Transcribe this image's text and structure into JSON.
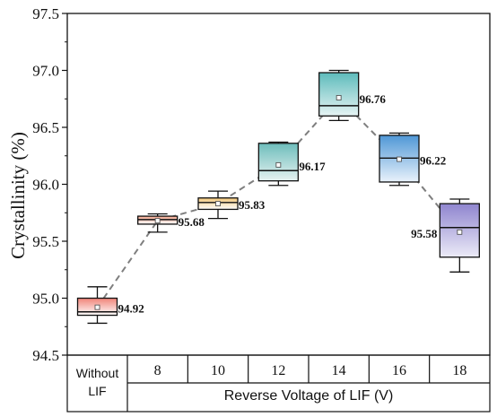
{
  "chart_data": {
    "type": "box",
    "ylabel": "Crystallinity (%)",
    "xlabel": "Reverse Voltage of LIF (V)",
    "ylim": [
      94.5,
      97.5
    ],
    "yticks": [
      "94.5",
      "95.0",
      "95.5",
      "96.0",
      "96.5",
      "97.0",
      "97.5"
    ],
    "categories": [
      {
        "line1": "Without",
        "line2": "LIF"
      },
      {
        "line1": "8"
      },
      {
        "line1": "10"
      },
      {
        "line1": "12"
      },
      {
        "line1": "14"
      },
      {
        "line1": "16"
      },
      {
        "line1": "18"
      }
    ],
    "boxes": [
      {
        "min": 94.78,
        "q1": 94.85,
        "median": 94.88,
        "q3": 95.0,
        "max": 95.1,
        "mean": 94.92,
        "label": "94.92",
        "color_top": "#ffffff",
        "color_bottom": "#f08378"
      },
      {
        "min": 95.58,
        "q1": 95.65,
        "median": 95.69,
        "q3": 95.72,
        "max": 95.74,
        "mean": 95.68,
        "label": "95.68",
        "color_top": "#ffffff",
        "color_bottom": "#f2a38a"
      },
      {
        "min": 95.7,
        "q1": 95.78,
        "median": 95.84,
        "q3": 95.88,
        "max": 95.94,
        "mean": 95.83,
        "label": "95.83",
        "color_top": "#ffffff",
        "color_bottom": "#f2c779"
      },
      {
        "min": 95.99,
        "q1": 96.03,
        "median": 96.12,
        "q3": 96.36,
        "max": 96.37,
        "mean": 96.17,
        "label": "96.17",
        "color_top": "#e6f2f1",
        "color_bottom": "#6dbdbb"
      },
      {
        "min": 96.56,
        "q1": 96.6,
        "median": 96.69,
        "q3": 96.98,
        "max": 97.0,
        "mean": 96.76,
        "label": "96.76",
        "color_top": "#e7f4f4",
        "color_bottom": "#5dbbbb"
      },
      {
        "min": 95.99,
        "q1": 96.02,
        "median": 96.23,
        "q3": 96.43,
        "max": 96.45,
        "mean": 96.22,
        "label": "96.22",
        "color_top": "#e9f2fb",
        "color_bottom": "#4f97d6"
      },
      {
        "min": 95.23,
        "q1": 95.36,
        "median": 95.62,
        "q3": 95.83,
        "max": 95.87,
        "mean": 95.58,
        "label": "95.58",
        "color_top": "#ecebf7",
        "color_bottom": "#8f85cf"
      }
    ],
    "mean_line_color": "#7f7f7f",
    "grid": false,
    "legend": "none"
  }
}
